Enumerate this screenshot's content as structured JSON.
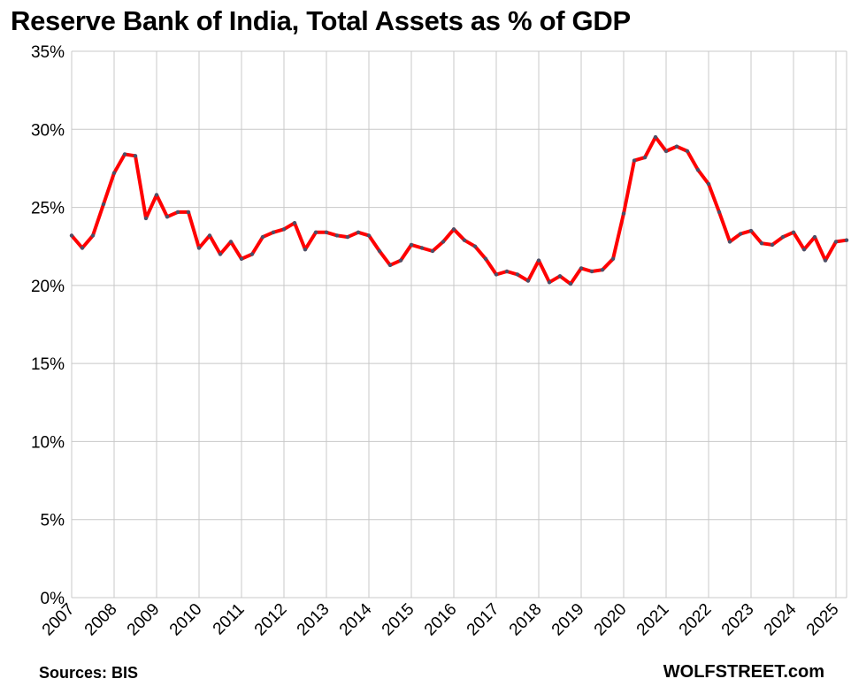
{
  "chart_data": {
    "type": "line",
    "title": "Reserve Bank of India, Total Assets as % of GDP",
    "xlabel": "",
    "ylabel": "",
    "ylim": [
      0,
      35
    ],
    "xlim": [
      2007.0,
      2025.25
    ],
    "yticks": [
      "0%",
      "5%",
      "10%",
      "15%",
      "20%",
      "25%",
      "30%",
      "35%"
    ],
    "xticks": [
      "2007",
      "2008",
      "2009",
      "2010",
      "2011",
      "2012",
      "2013",
      "2014",
      "2015",
      "2016",
      "2017",
      "2018",
      "2019",
      "2020",
      "2021",
      "2022",
      "2023",
      "2024",
      "2025"
    ],
    "grid": true,
    "legend": "none",
    "series": [
      {
        "color": "#ff0000",
        "marker_color": "#4a5068",
        "x": [
          2007.0,
          2007.25,
          2007.5,
          2007.75,
          2008.0,
          2008.25,
          2008.5,
          2008.75,
          2009.0,
          2009.25,
          2009.5,
          2009.75,
          2010.0,
          2010.25,
          2010.5,
          2010.75,
          2011.0,
          2011.25,
          2011.5,
          2011.75,
          2012.0,
          2012.25,
          2012.5,
          2012.75,
          2013.0,
          2013.25,
          2013.5,
          2013.75,
          2014.0,
          2014.25,
          2014.5,
          2014.75,
          2015.0,
          2015.25,
          2015.5,
          2015.75,
          2016.0,
          2016.25,
          2016.5,
          2016.75,
          2017.0,
          2017.25,
          2017.5,
          2017.75,
          2018.0,
          2018.25,
          2018.5,
          2018.75,
          2019.0,
          2019.25,
          2019.5,
          2019.75,
          2020.0,
          2020.25,
          2020.5,
          2020.75,
          2021.0,
          2021.25,
          2021.5,
          2021.75,
          2022.0,
          2022.25,
          2022.5,
          2022.75,
          2023.0,
          2023.25,
          2023.5,
          2023.75,
          2024.0,
          2024.25,
          2024.5,
          2024.75,
          2025.0,
          2025.25
        ],
        "values": [
          23.2,
          22.4,
          23.2,
          25.2,
          27.2,
          28.4,
          28.3,
          24.3,
          25.8,
          24.4,
          24.7,
          24.7,
          22.4,
          23.2,
          22.0,
          22.8,
          21.7,
          22.0,
          23.1,
          23.4,
          23.6,
          24.0,
          22.3,
          23.4,
          23.4,
          23.2,
          23.1,
          23.4,
          23.2,
          22.2,
          21.3,
          21.6,
          22.6,
          22.4,
          22.2,
          22.8,
          23.6,
          22.9,
          22.5,
          21.7,
          20.7,
          20.9,
          20.7,
          20.3,
          21.6,
          20.2,
          20.6,
          20.1,
          21.1,
          20.9,
          21.0,
          21.7,
          24.6,
          28.0,
          28.2,
          29.5,
          28.6,
          28.9,
          28.6,
          27.4,
          26.5,
          24.7,
          22.8,
          23.3,
          23.5,
          22.7,
          22.6,
          23.1,
          23.4,
          22.3,
          23.1,
          21.6,
          22.8,
          22.9
        ]
      }
    ]
  },
  "footer": {
    "source": "Sources: BIS",
    "brand": "WOLFSTREET.com"
  }
}
